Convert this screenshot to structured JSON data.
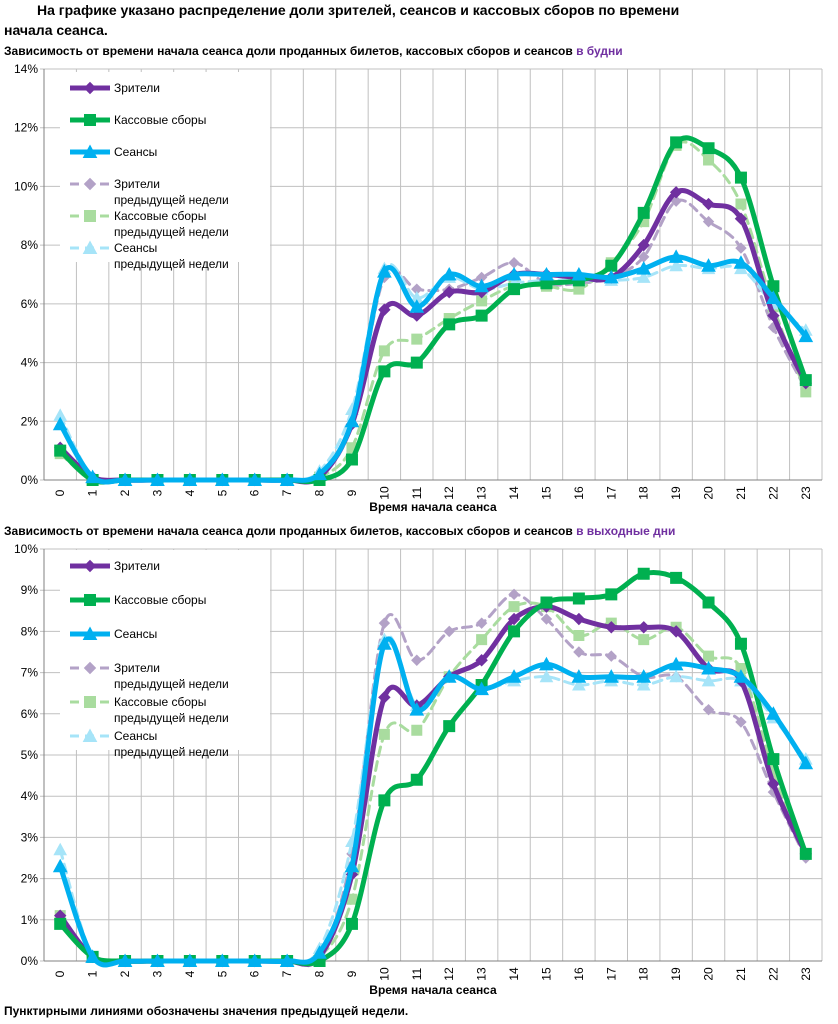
{
  "heading": {
    "line1": "На графике указано распределение доли зрителей, сеансов и кассовых сборов по времени",
    "line2": "начала сеанса."
  },
  "footnote": "Пунктирными линиями обозначены значения предыдущей недели.",
  "colors": {
    "viewers": "#7030a0",
    "box": "#00b050",
    "sessions": "#00b0f0",
    "viewers_prev": "#b3a2c7",
    "box_prev": "#a9dc9f",
    "sessions_prev": "#a6e4f8",
    "accent": "#7030a0",
    "grid": "#c0c0c0"
  },
  "legend": [
    {
      "key": "viewers",
      "label": "Зрители",
      "line2": ""
    },
    {
      "key": "box",
      "label": "Кассовые сборы",
      "line2": ""
    },
    {
      "key": "sessions",
      "label": "Сеансы",
      "line2": ""
    },
    {
      "key": "viewers_prev",
      "label": "Зрители",
      "line2": "предыдущей недели"
    },
    {
      "key": "box_prev",
      "label": "Кассовые сборы",
      "line2": "предыдущей недели"
    },
    {
      "key": "sessions_prev",
      "label": "Сеансы",
      "line2": "предыдущей недели"
    }
  ],
  "chart_data": [
    {
      "type": "line",
      "title": "Зависимость от времени начала сеанса доли проданных билетов, кассовых сборов и сеансов",
      "title_highlight": "в будни",
      "xlabel": "Время начала сеанса",
      "ylabel": "",
      "ylim": [
        0,
        14
      ],
      "yticks": [
        0,
        2,
        4,
        6,
        8,
        10,
        12,
        14
      ],
      "ytick_labels": [
        "0%",
        "2%",
        "4%",
        "6%",
        "8%",
        "10%",
        "12%",
        "14%"
      ],
      "x": [
        "0",
        "1",
        "2",
        "3",
        "4",
        "5",
        "6",
        "7",
        "8",
        "9",
        "10",
        "11",
        "12",
        "13",
        "14",
        "15",
        "16",
        "17",
        "18",
        "19",
        "20",
        "21",
        "22",
        "23"
      ],
      "series": [
        {
          "key": "viewers_prev",
          "name": "Зрители предыдущей недели",
          "dashed": true,
          "marker": "diamond",
          "values": [
            1.0,
            0.1,
            0.0,
            0.0,
            0.0,
            0.0,
            0.0,
            0.0,
            0.1,
            1.9,
            6.9,
            6.5,
            6.5,
            6.9,
            7.4,
            6.7,
            6.7,
            6.9,
            7.6,
            9.5,
            8.8,
            7.9,
            5.2,
            3.1
          ]
        },
        {
          "key": "box_prev",
          "name": "Кассовые сборы предыдущей недели",
          "dashed": true,
          "marker": "square",
          "values": [
            0.9,
            0.0,
            0.0,
            0.0,
            0.0,
            0.0,
            0.0,
            0.0,
            0.1,
            1.1,
            4.4,
            4.8,
            5.5,
            6.1,
            6.6,
            6.6,
            6.5,
            7.4,
            8.8,
            11.4,
            10.9,
            9.4,
            5.9,
            3.0
          ]
        },
        {
          "key": "sessions_prev",
          "name": "Сеансы предыдущей недели",
          "dashed": true,
          "marker": "triangle",
          "values": [
            2.2,
            0.1,
            0.0,
            0.0,
            0.0,
            0.0,
            0.0,
            0.0,
            0.3,
            2.4,
            7.2,
            6.2,
            6.9,
            6.5,
            6.7,
            6.8,
            6.8,
            6.8,
            6.9,
            7.3,
            7.2,
            7.2,
            6.0,
            5.1
          ]
        },
        {
          "key": "viewers",
          "name": "Зрители",
          "dashed": false,
          "marker": "diamond",
          "values": [
            1.1,
            0.1,
            0.0,
            0.0,
            0.0,
            0.0,
            0.0,
            0.0,
            0.1,
            1.9,
            5.8,
            5.6,
            6.4,
            6.4,
            7.0,
            7.0,
            6.9,
            6.9,
            8.0,
            9.8,
            9.4,
            8.9,
            5.6,
            3.3
          ]
        },
        {
          "key": "box",
          "name": "Кассовые сборы",
          "dashed": false,
          "marker": "square",
          "values": [
            1.0,
            0.0,
            0.0,
            0.0,
            0.0,
            0.0,
            0.0,
            0.0,
            0.0,
            0.7,
            3.7,
            4.0,
            5.3,
            5.6,
            6.5,
            6.7,
            6.8,
            7.3,
            9.1,
            11.5,
            11.3,
            10.3,
            6.6,
            3.4
          ]
        },
        {
          "key": "sessions",
          "name": "Сеансы",
          "dashed": false,
          "marker": "triangle",
          "values": [
            1.9,
            0.1,
            0.0,
            0.0,
            0.0,
            0.0,
            0.0,
            0.0,
            0.2,
            2.0,
            7.1,
            5.9,
            7.0,
            6.6,
            7.0,
            7.0,
            7.0,
            6.9,
            7.2,
            7.6,
            7.3,
            7.4,
            6.2,
            4.9
          ]
        }
      ]
    },
    {
      "type": "line",
      "title": "Зависимость от времени начала сеанса доли проданных билетов, кассовых сборов и сеансов",
      "title_highlight": "в выходные дни",
      "xlabel": "Время начала сеанса",
      "ylabel": "",
      "ylim": [
        0,
        10
      ],
      "yticks": [
        0,
        1,
        2,
        3,
        4,
        5,
        6,
        7,
        8,
        9,
        10
      ],
      "ytick_labels": [
        "0%",
        "1%",
        "2%",
        "3%",
        "4%",
        "5%",
        "6%",
        "7%",
        "8%",
        "9%",
        "10%"
      ],
      "x": [
        "0",
        "1",
        "2",
        "3",
        "4",
        "5",
        "6",
        "7",
        "8",
        "9",
        "10",
        "11",
        "12",
        "13",
        "14",
        "15",
        "16",
        "17",
        "18",
        "19",
        "20",
        "21",
        "22",
        "23"
      ],
      "series": [
        {
          "key": "viewers_prev",
          "name": "Зрители предыдущей недели",
          "dashed": true,
          "marker": "diamond",
          "values": [
            1.1,
            0.1,
            0.0,
            0.0,
            0.0,
            0.0,
            0.0,
            0.0,
            0.1,
            2.6,
            8.2,
            7.3,
            8.0,
            8.2,
            8.9,
            8.3,
            7.5,
            7.4,
            6.9,
            6.9,
            6.1,
            5.8,
            4.1,
            2.5
          ]
        },
        {
          "key": "box_prev",
          "name": "Кассовые сборы предыдущей недели",
          "dashed": true,
          "marker": "square",
          "values": [
            1.1,
            0.1,
            0.0,
            0.0,
            0.0,
            0.0,
            0.0,
            0.0,
            0.1,
            1.5,
            5.5,
            5.6,
            6.9,
            7.8,
            8.6,
            8.6,
            7.9,
            8.2,
            7.8,
            8.1,
            7.4,
            7.1,
            4.6,
            2.6
          ]
        },
        {
          "key": "sessions_prev",
          "name": "Сеансы предыдущей недели",
          "dashed": true,
          "marker": "triangle",
          "values": [
            2.7,
            0.1,
            0.0,
            0.0,
            0.0,
            0.0,
            0.0,
            0.0,
            0.3,
            2.9,
            7.8,
            6.2,
            6.9,
            6.6,
            6.8,
            6.9,
            6.7,
            6.8,
            6.7,
            6.9,
            6.8,
            6.8,
            5.9,
            4.9
          ]
        },
        {
          "key": "viewers",
          "name": "Зрители",
          "dashed": false,
          "marker": "diamond",
          "values": [
            1.1,
            0.1,
            0.0,
            0.0,
            0.0,
            0.0,
            0.0,
            0.0,
            0.1,
            2.1,
            6.4,
            6.2,
            6.9,
            7.3,
            8.3,
            8.6,
            8.3,
            8.1,
            8.1,
            8.0,
            7.1,
            6.8,
            4.3,
            2.6
          ]
        },
        {
          "key": "box",
          "name": "Кассовые сборы",
          "dashed": false,
          "marker": "square",
          "values": [
            0.9,
            0.1,
            0.0,
            0.0,
            0.0,
            0.0,
            0.0,
            0.0,
            0.0,
            0.9,
            3.9,
            4.4,
            5.7,
            6.7,
            8.0,
            8.7,
            8.8,
            8.9,
            9.4,
            9.3,
            8.7,
            7.7,
            4.9,
            2.6
          ]
        },
        {
          "key": "sessions",
          "name": "Сеансы",
          "dashed": false,
          "marker": "triangle",
          "values": [
            2.3,
            0.1,
            0.0,
            0.0,
            0.0,
            0.0,
            0.0,
            0.0,
            0.2,
            2.3,
            7.7,
            6.1,
            6.9,
            6.6,
            6.9,
            7.2,
            6.9,
            6.9,
            6.9,
            7.2,
            7.1,
            6.9,
            6.0,
            4.8
          ]
        }
      ]
    }
  ]
}
